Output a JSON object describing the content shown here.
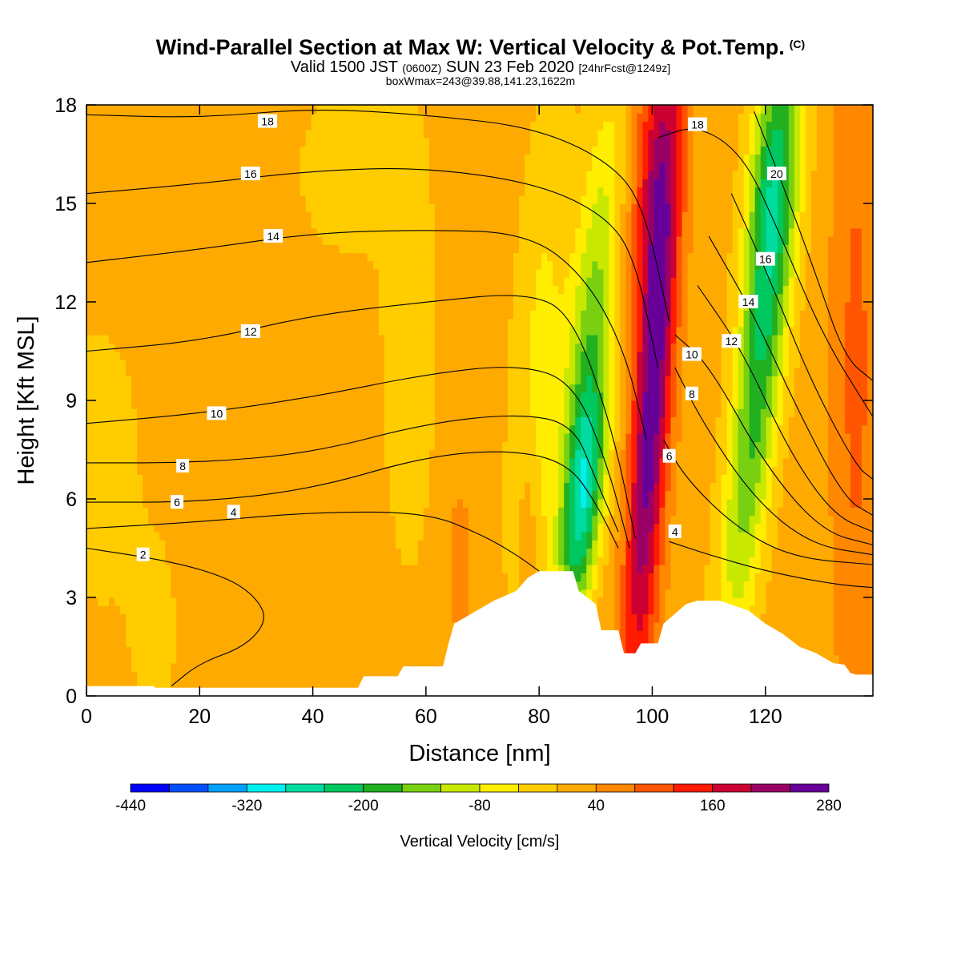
{
  "title": {
    "main": "Wind-Parallel Section at Max W: Vertical Velocity & Pot.Temp.",
    "mark": "(C)"
  },
  "subtitle": {
    "valid": "Valid 1500 JST",
    "utc": "(0600Z)",
    "date": "SUN 23 Feb 2020",
    "forecast": "[24hrFcst@1249z]"
  },
  "box_line": "boxWmax=243@39.88,141.23,1622m",
  "chart_data": {
    "type": "heatmap",
    "xlabel": "Distance [nm]",
    "ylabel": "Height [Kft MSL]",
    "xlim": [
      0,
      139
    ],
    "ylim": [
      0,
      18
    ],
    "x_ticks": [
      0,
      20,
      40,
      60,
      80,
      100,
      120
    ],
    "y_ticks": [
      0,
      3,
      6,
      9,
      12,
      15,
      18
    ],
    "x_tick_labels": [
      "0",
      "20",
      "40",
      "60",
      "80",
      "100",
      "120"
    ],
    "y_tick_labels": [
      "0",
      "3",
      "6",
      "9",
      "12",
      "15",
      "18"
    ],
    "colorbar": {
      "title": "Vertical Velocity [cm/s]",
      "levels": [
        -440,
        -400,
        -360,
        -320,
        -280,
        -240,
        -200,
        -160,
        -120,
        -80,
        -40,
        0,
        40,
        80,
        120,
        160,
        200,
        240,
        280
      ],
      "labels": [
        "-440",
        "-320",
        "-200",
        "-80",
        "40",
        "160",
        "280"
      ],
      "colors": [
        "#0000ff",
        "#0050ff",
        "#00a0ff",
        "#00f0f0",
        "#00dca0",
        "#00c860",
        "#20b020",
        "#78d010",
        "#c8e800",
        "#ffee00",
        "#ffcc00",
        "#ffaa00",
        "#ff8800",
        "#ff5500",
        "#ff1a00",
        "#cc0033",
        "#990066",
        "#660099"
      ]
    },
    "terrain": [
      [
        0,
        0.3
      ],
      [
        12,
        0.3
      ],
      [
        12,
        0.25
      ],
      [
        48,
        0.25
      ],
      [
        49,
        0.6
      ],
      [
        55,
        0.6
      ],
      [
        56,
        0.9
      ],
      [
        63,
        0.9
      ],
      [
        64,
        1.6
      ],
      [
        65,
        2.2
      ],
      [
        68,
        2.5
      ],
      [
        72,
        2.9
      ],
      [
        76,
        3.2
      ],
      [
        78,
        3.6
      ],
      [
        80,
        3.8
      ],
      [
        86,
        3.8
      ],
      [
        87,
        3.2
      ],
      [
        90,
        2.8
      ],
      [
        91,
        2.0
      ],
      [
        94,
        2.0
      ],
      [
        95,
        1.3
      ],
      [
        97,
        1.3
      ],
      [
        98,
        1.6
      ],
      [
        101,
        1.6
      ],
      [
        102,
        2.2
      ],
      [
        104,
        2.5
      ],
      [
        106,
        2.8
      ],
      [
        108,
        2.9
      ],
      [
        112,
        2.9
      ],
      [
        117,
        2.6
      ],
      [
        120,
        2.2
      ],
      [
        123,
        1.9
      ],
      [
        126,
        1.5
      ],
      [
        129,
        1.3
      ],
      [
        132,
        1.0
      ],
      [
        134,
        0.95
      ],
      [
        135,
        0.7
      ],
      [
        136,
        0.65
      ],
      [
        139,
        0.65
      ]
    ],
    "velocity_features": [
      {
        "x": 80,
        "y": 10,
        "sx": 3.5,
        "sy": 6,
        "value": -70,
        "tilt": 0.3
      },
      {
        "x": 88,
        "y": 6,
        "sx": 2.4,
        "sy": 2.6,
        "value": -230,
        "tilt": 0.55
      },
      {
        "x": 89,
        "y": 11,
        "sx": 2.8,
        "sy": 5,
        "value": -150,
        "tilt": 0.55
      },
      {
        "x": 100,
        "y": 9,
        "sx": 2.3,
        "sy": 6.5,
        "value": 250,
        "tilt": 0.35
      },
      {
        "x": 100,
        "y": 16,
        "sx": 3,
        "sy": 3,
        "value": 110,
        "tilt": 0.2
      },
      {
        "x": 119,
        "y": 10,
        "sx": 3,
        "sy": 6,
        "value": -200,
        "tilt": 0.6
      },
      {
        "x": 121,
        "y": 16,
        "sx": 3,
        "sy": 3,
        "value": -150,
        "tilt": 0.4
      },
      {
        "x": 136,
        "y": 10,
        "sx": 3,
        "sy": 8,
        "value": 70,
        "tilt": 0
      },
      {
        "x": 66,
        "y": 4,
        "sx": 1.4,
        "sy": 1.5,
        "value": 55,
        "tilt": 0
      },
      {
        "x": 78,
        "y": 5,
        "sx": 1.2,
        "sy": 2,
        "value": 50,
        "tilt": 0
      },
      {
        "x": 2,
        "y": 7,
        "sx": 6,
        "sy": 3.5,
        "value": -40,
        "tilt": 0
      },
      {
        "x": 12,
        "y": 2,
        "sx": 3,
        "sy": 2,
        "value": -40,
        "tilt": 0
      },
      {
        "x": 57,
        "y": 11,
        "sx": 4,
        "sy": 6,
        "value": -40,
        "tilt": 0
      },
      {
        "x": 45,
        "y": 16,
        "sx": 6,
        "sy": 2,
        "value": -40,
        "tilt": 0
      }
    ],
    "theta_contours": [
      {
        "level": 2,
        "label": "2",
        "label_at": [
          10,
          4.3
        ],
        "points": [
          [
            0,
            4.5
          ],
          [
            15,
            4.1
          ],
          [
            25,
            3.6
          ],
          [
            30,
            3.0
          ],
          [
            32,
            2.3
          ],
          [
            28,
            1.5
          ],
          [
            20,
            1.0
          ],
          [
            15,
            0.3
          ]
        ]
      },
      {
        "level": 4,
        "label": "4",
        "label_at": [
          26,
          5.6
        ],
        "points": [
          [
            0,
            5.1
          ],
          [
            20,
            5.3
          ],
          [
            40,
            5.6
          ],
          [
            60,
            5.6
          ],
          [
            70,
            4.9
          ],
          [
            76,
            4.3
          ],
          [
            80,
            3.8
          ]
        ]
      },
      {
        "level": 4,
        "label": "4",
        "label_at": [
          104,
          5.0
        ],
        "points": [
          [
            103,
            4.7
          ],
          [
            110,
            4.3
          ],
          [
            120,
            3.8
          ],
          [
            132,
            3.4
          ],
          [
            139,
            3.3
          ]
        ]
      },
      {
        "level": 6,
        "label": "6",
        "label_at": [
          16,
          5.9
        ],
        "points": [
          [
            0,
            5.9
          ],
          [
            20,
            5.9
          ],
          [
            40,
            6.3
          ],
          [
            60,
            7.3
          ],
          [
            75,
            7.5
          ],
          [
            85,
            7.1
          ],
          [
            90,
            5.9
          ],
          [
            94,
            4.5
          ]
        ]
      },
      {
        "level": 6,
        "label": "6",
        "label_at": [
          103,
          7.3
        ],
        "points": [
          [
            102,
            7.8
          ],
          [
            106,
            6.6
          ],
          [
            115,
            5.1
          ],
          [
            125,
            4.2
          ],
          [
            139,
            4.0
          ]
        ]
      },
      {
        "level": 8,
        "label": "8",
        "label_at": [
          17,
          7.0
        ],
        "points": [
          [
            0,
            7.1
          ],
          [
            20,
            7.1
          ],
          [
            40,
            7.4
          ],
          [
            60,
            8.3
          ],
          [
            76,
            8.6
          ],
          [
            86,
            8.3
          ],
          [
            90,
            6.6
          ],
          [
            94,
            5.0
          ]
        ]
      },
      {
        "level": 8,
        "label": "8",
        "label_at": [
          107,
          9.2
        ],
        "points": [
          [
            104,
            10.0
          ],
          [
            109,
            8.3
          ],
          [
            118,
            6.0
          ],
          [
            128,
            4.6
          ],
          [
            139,
            4.3
          ]
        ]
      },
      {
        "level": 10,
        "label": "10",
        "label_at": [
          23,
          8.6
        ],
        "points": [
          [
            0,
            8.3
          ],
          [
            20,
            8.6
          ],
          [
            40,
            9.1
          ],
          [
            60,
            9.8
          ],
          [
            76,
            10.1
          ],
          [
            86,
            9.6
          ],
          [
            92,
            7.1
          ],
          [
            96,
            4.5
          ]
        ]
      },
      {
        "level": 10,
        "label": "10",
        "label_at": [
          107,
          10.4
        ],
        "points": [
          [
            104,
            11.0
          ],
          [
            110,
            10.1
          ],
          [
            120,
            7.0
          ],
          [
            130,
            5.0
          ],
          [
            139,
            4.6
          ]
        ]
      },
      {
        "level": 12,
        "label": "12",
        "label_at": [
          29,
          11.1
        ],
        "points": [
          [
            0,
            10.5
          ],
          [
            20,
            10.8
          ],
          [
            40,
            11.6
          ],
          [
            60,
            12.0
          ],
          [
            78,
            12.3
          ],
          [
            86,
            11.6
          ],
          [
            93,
            8.1
          ],
          [
            97,
            4.8
          ]
        ]
      },
      {
        "level": 12,
        "label": "12",
        "label_at": [
          114,
          10.8
        ],
        "points": [
          [
            108,
            12.5
          ],
          [
            116,
            10.5
          ],
          [
            124,
            7.5
          ],
          [
            132,
            5.5
          ],
          [
            139,
            5.0
          ]
        ]
      },
      {
        "level": 14,
        "label": "14",
        "label_at": [
          33,
          14.0
        ],
        "points": [
          [
            0,
            13.2
          ],
          [
            20,
            13.6
          ],
          [
            40,
            14.1
          ],
          [
            60,
            14.2
          ],
          [
            78,
            14.1
          ],
          [
            88,
            12.8
          ],
          [
            95,
            10.6
          ],
          [
            99,
            7.8
          ]
        ]
      },
      {
        "level": 14,
        "label": "14",
        "label_at": [
          117,
          12.0
        ],
        "points": [
          [
            110,
            14.0
          ],
          [
            118,
            11.6
          ],
          [
            126,
            8.6
          ],
          [
            134,
            6.0
          ],
          [
            139,
            5.5
          ]
        ]
      },
      {
        "level": 16,
        "label": "16",
        "label_at": [
          29,
          15.9
        ],
        "points": [
          [
            0,
            15.3
          ],
          [
            20,
            15.6
          ],
          [
            40,
            16.0
          ],
          [
            60,
            16.1
          ],
          [
            80,
            15.6
          ],
          [
            92,
            14.6
          ],
          [
            97,
            13.3
          ],
          [
            101,
            10.0
          ]
        ]
      },
      {
        "level": 16,
        "label": "16",
        "label_at": [
          120,
          13.3
        ],
        "points": [
          [
            114,
            15.3
          ],
          [
            121,
            12.6
          ],
          [
            128,
            9.6
          ],
          [
            136,
            7.0
          ],
          [
            139,
            6.6
          ]
        ]
      },
      {
        "level": 18,
        "label": "18",
        "label_at": [
          32,
          17.5
        ],
        "points": [
          [
            0,
            17.7
          ],
          [
            20,
            17.6
          ],
          [
            40,
            17.9
          ],
          [
            60,
            17.7
          ],
          [
            80,
            17.3
          ],
          [
            94,
            16.1
          ],
          [
            99,
            14.6
          ],
          [
            103,
            11.4
          ]
        ]
      },
      {
        "level": 18,
        "label": "18",
        "label_at": [
          108,
          17.4
        ],
        "points": [
          [
            101,
            17.0
          ],
          [
            108,
            17.4
          ],
          [
            116,
            16.5
          ],
          [
            122,
            14.3
          ],
          [
            130,
            11.0
          ],
          [
            139,
            8.5
          ]
        ]
      },
      {
        "level": 20,
        "label": "20",
        "label_at": [
          122,
          15.9
        ],
        "points": [
          [
            118,
            17.8
          ],
          [
            123,
            15.6
          ],
          [
            129,
            12.8
          ],
          [
            134,
            10.3
          ],
          [
            139,
            9.6
          ]
        ]
      }
    ]
  }
}
